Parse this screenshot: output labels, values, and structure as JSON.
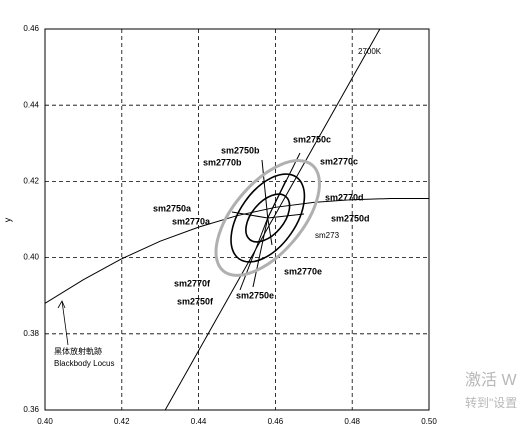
{
  "chart_data": {
    "type": "line",
    "ylabel": "y",
    "xlim": [
      0.4,
      0.5
    ],
    "ylim": [
      0.36,
      0.46
    ],
    "xticks": [
      {
        "value": 0.4,
        "label": "0.40"
      },
      {
        "value": 0.42,
        "label": "0.42"
      },
      {
        "value": 0.44,
        "label": "0.44"
      },
      {
        "value": 0.46,
        "label": "0.46"
      },
      {
        "value": 0.48,
        "label": "0.48"
      },
      {
        "value": 0.5,
        "label": "0.50"
      }
    ],
    "yticks": [
      {
        "value": 0.36,
        "label": "0.36"
      },
      {
        "value": 0.38,
        "label": "0.38"
      },
      {
        "value": 0.4,
        "label": "0.40"
      },
      {
        "value": 0.42,
        "label": "0.42"
      },
      {
        "value": 0.44,
        "label": "0.44"
      },
      {
        "value": 0.46,
        "label": "0.46"
      }
    ],
    "grid": true,
    "series": [
      {
        "color": "#000000",
        "x": [
          0.4,
          0.41,
          0.42,
          0.43,
          0.44,
          0.45,
          0.46,
          0.47,
          0.48,
          0.49,
          0.5
        ],
        "values": [
          0.388,
          0.3942,
          0.3997,
          0.4043,
          0.408,
          0.411,
          0.4132,
          0.4145,
          0.4152,
          0.4155,
          0.4155
        ]
      },
      {
        "color": "#000000",
        "x": [
          0.4313,
          0.4872
        ],
        "values": [
          0.36,
          0.46
        ]
      }
    ],
    "ellipses": [
      {
        "center_x": 0.458,
        "center_y": 0.4104,
        "semi_major": 0.018,
        "semi_minor": 0.009,
        "angle": 50,
        "color": "#b0b0b0"
      },
      {
        "center_x": 0.458,
        "center_y": 0.4104,
        "semi_major": 0.013,
        "semi_minor": 0.0073,
        "angle": 55,
        "color": "#000000"
      },
      {
        "center_x": 0.458,
        "center_y": 0.4104,
        "semi_major": 0.0073,
        "semi_minor": 0.0042,
        "angle": 50,
        "color": "#000000"
      }
    ],
    "annotations": [
      {
        "text": "2700K",
        "color": "#000000",
        "bold": false
      },
      {
        "text": "sm2750c",
        "color": "#000000",
        "bold": true
      },
      {
        "text": "sm2750b",
        "color": "#000000",
        "bold": true
      },
      {
        "text": "sm2770b",
        "color": "#a8a8a8",
        "bold": true
      },
      {
        "text": "sm2770c",
        "color": "#a8a8a8",
        "bold": true
      },
      {
        "text": "sm2770d",
        "color": "#a8a8a8",
        "bold": true
      },
      {
        "text": "sm2750d",
        "color": "#000000",
        "bold": true
      },
      {
        "text": "sm2750a",
        "color": "#000000",
        "bold": true
      },
      {
        "text": "sm2770a",
        "color": "#a8a8a8",
        "bold": true
      },
      {
        "text": "sm273",
        "color": "#000000",
        "bold": false
      },
      {
        "text": "sm2770e",
        "color": "#a8a8a8",
        "bold": true
      },
      {
        "text": "sm2770f",
        "color": "#a8a8a8",
        "bold": true
      },
      {
        "text": "sm2750f",
        "color": "#000000",
        "bold": true
      },
      {
        "text": "sm2750e",
        "color": "#000000",
        "bold": true
      },
      {
        "text": "黑体放射軌跡",
        "color": "#000000",
        "bold": false
      },
      {
        "text": "Blackbody Locus",
        "color": "#000000",
        "bold": false
      }
    ]
  },
  "watermark": {
    "line1": "激活 W",
    "line2": "转到\"设置"
  }
}
